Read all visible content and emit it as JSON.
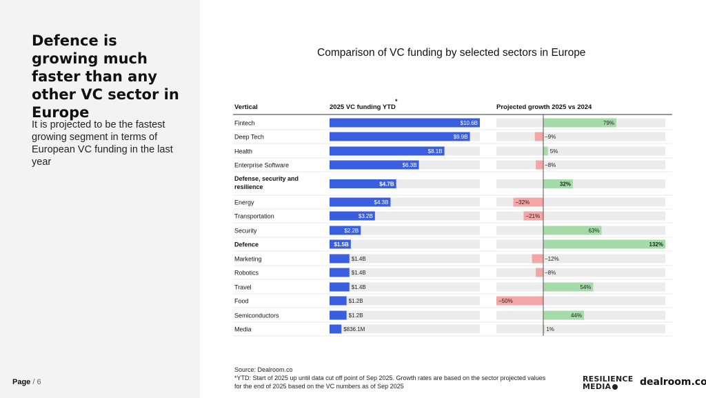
{
  "headline": "Defence is growing much faster than any other VC sector in Europe",
  "subhead": "It is projected to be the fastest growing segment in terms of European VC funding in the last year",
  "page": {
    "label": "Page",
    "separator": "/",
    "number": "6"
  },
  "chart_title": "Comparison of VC funding by selected sectors in Europe",
  "source": "Source:  Dealroom.co",
  "footnote": "*YTD: Start of 2025 up until data cut off point of Sep 2025. Growth rates are based on the sector projected values for the end of 2025 based on the VC numbers as of Sep 2025",
  "logos": {
    "resilience": [
      "RESILIENCE",
      "MEDIA"
    ],
    "dealroom": "dealroom.co"
  },
  "colors": {
    "funding_bar": "#3a5ee0",
    "growth_positive": "#a5dba8",
    "growth_negative": "#f4a5a5",
    "row_track": "#ececec",
    "zero_line": "#555555"
  },
  "chart_data": {
    "type": "table",
    "columns": [
      "Vertical",
      "2025 VC funding YTD",
      "Projected growth 2025 vs 2024"
    ],
    "funding_header_mark": "*",
    "funding_unit": "$B",
    "growth_unit": "%",
    "rows": [
      {
        "vertical": "Fintech",
        "funding": 10.6,
        "funding_label": "$10.6B",
        "growth": 79,
        "growth_label": "79%",
        "bold": false
      },
      {
        "vertical": "Deep Tech",
        "funding": 9.9,
        "funding_label": "$9.9B",
        "growth": -9,
        "growth_label": "−9%",
        "bold": false
      },
      {
        "vertical": "Health",
        "funding": 8.1,
        "funding_label": "$8.1B",
        "growth": 5,
        "growth_label": "5%",
        "bold": false
      },
      {
        "vertical": "Enterprise Software",
        "funding": 6.3,
        "funding_label": "$6.3B",
        "growth": -8,
        "growth_label": "−8%",
        "bold": false
      },
      {
        "vertical": "Defense, security and resilience",
        "vertical_lines": [
          "Defense, security and",
          "resilience"
        ],
        "funding": 4.7,
        "funding_label": "$4.7B",
        "growth": 32,
        "growth_label": "32%",
        "bold": true
      },
      {
        "vertical": "Energy",
        "funding": 4.3,
        "funding_label": "$4.3B",
        "growth": -32,
        "growth_label": "−32%",
        "bold": false
      },
      {
        "vertical": "Transportation",
        "funding": 3.2,
        "funding_label": "$3.2B",
        "growth": -21,
        "growth_label": "−21%",
        "bold": false
      },
      {
        "vertical": "Security",
        "funding": 2.2,
        "funding_label": "$2.2B",
        "growth": 63,
        "growth_label": "63%",
        "bold": false
      },
      {
        "vertical": "Defence",
        "funding": 1.5,
        "funding_label": "$1.5B",
        "growth": 132,
        "growth_label": "132%",
        "bold": true
      },
      {
        "vertical": "Marketing",
        "funding": 1.4,
        "funding_label": "$1.4B",
        "growth": -12,
        "growth_label": "−12%",
        "bold": false
      },
      {
        "vertical": "Robotics",
        "funding": 1.4,
        "funding_label": "$1.4B",
        "growth": -8,
        "growth_label": "−8%",
        "bold": false
      },
      {
        "vertical": "Travel",
        "funding": 1.4,
        "funding_label": "$1.4B",
        "growth": 54,
        "growth_label": "54%",
        "bold": false
      },
      {
        "vertical": "Food",
        "funding": 1.2,
        "funding_label": "$1.2B",
        "growth": -50,
        "growth_label": "−50%",
        "bold": false
      },
      {
        "vertical": "Semiconductors",
        "funding": 1.2,
        "funding_label": "$1.2B",
        "growth": 44,
        "growth_label": "44%",
        "bold": false
      },
      {
        "vertical": "Media",
        "funding": 0.8361,
        "funding_label": "$836.1M",
        "growth": 1,
        "growth_label": "1%",
        "bold": false
      }
    ]
  }
}
